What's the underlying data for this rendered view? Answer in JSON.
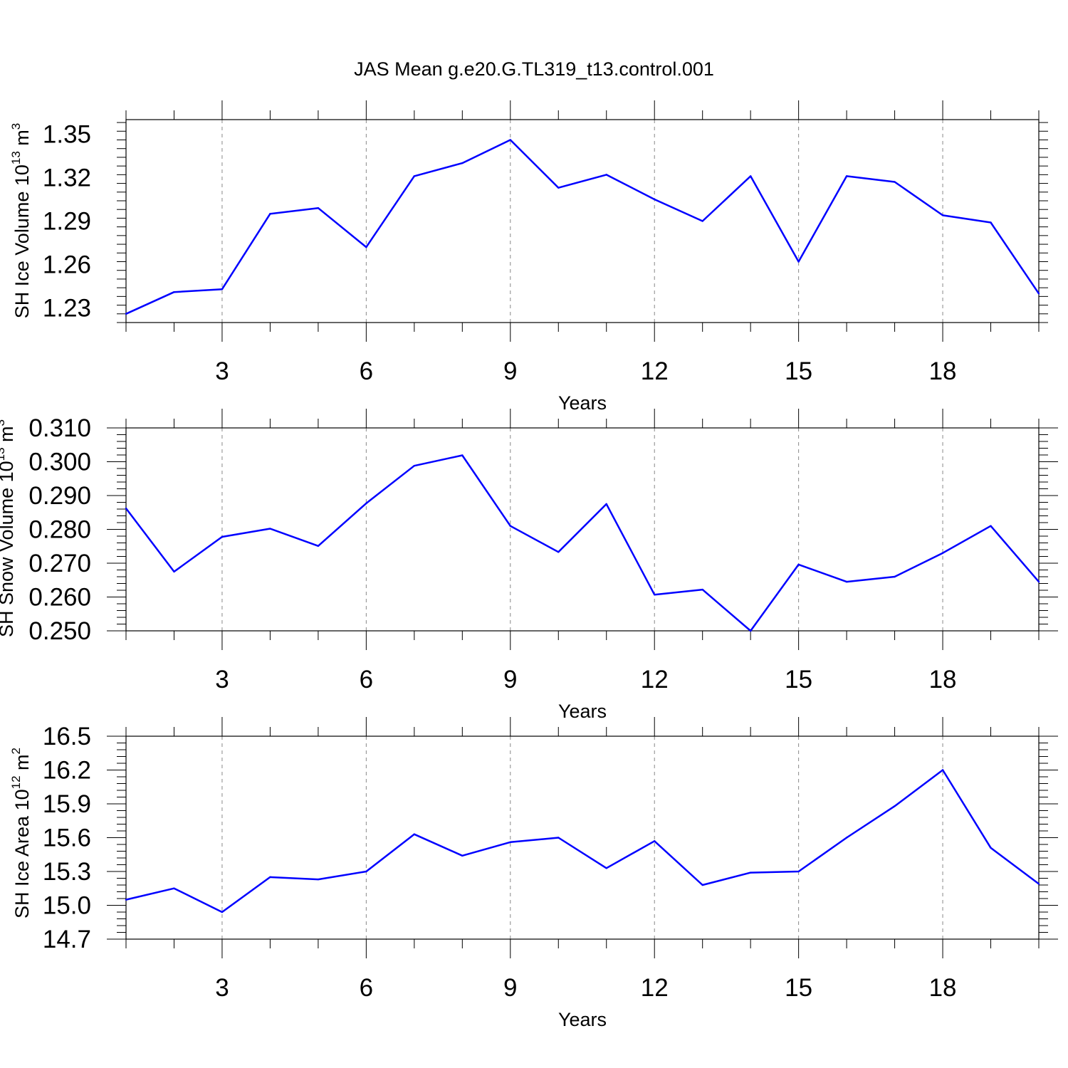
{
  "title": "JAS Mean g.e20.G.TL319_t13.control.001",
  "colors": {
    "line": "#0000ff",
    "axis": "#000000",
    "grid": "#888888"
  },
  "chart_data": [
    {
      "type": "line",
      "ylabel": {
        "main": "SH Ice Volume 10",
        "sup": "13",
        "unit": " m",
        "unit_sup": "3"
      },
      "xlabel": "Years",
      "xlim": [
        1,
        20
      ],
      "ylim": [
        1.22,
        1.36
      ],
      "yticks": [
        1.23,
        1.26,
        1.29,
        1.32,
        1.35
      ],
      "ytick_labels": [
        "1.23",
        "1.26",
        "1.29",
        "1.32",
        "1.35"
      ],
      "xticks": [
        3,
        6,
        9,
        12,
        15,
        18
      ],
      "xtick_labels": [
        "3",
        "6",
        "9",
        "12",
        "15",
        "18"
      ],
      "grid": "vertical dashed at major x ticks",
      "x": [
        1,
        2,
        3,
        4,
        5,
        6,
        7,
        8,
        9,
        10,
        11,
        12,
        13,
        14,
        15,
        16,
        17,
        18,
        19,
        20
      ],
      "y": [
        1.226,
        1.241,
        1.243,
        1.295,
        1.299,
        1.272,
        1.321,
        1.33,
        1.346,
        1.313,
        1.322,
        1.305,
        1.29,
        1.321,
        1.262,
        1.321,
        1.317,
        1.294,
        1.289,
        1.24
      ]
    },
    {
      "type": "line",
      "ylabel": {
        "main": "SH Snow Volume 10",
        "sup": "13",
        "unit": " m",
        "unit_sup": "3"
      },
      "xlabel": "Years",
      "xlim": [
        1,
        20
      ],
      "ylim": [
        0.25,
        0.31
      ],
      "yticks": [
        0.25,
        0.26,
        0.27,
        0.28,
        0.29,
        0.3,
        0.31
      ],
      "ytick_labels": [
        "0.250",
        "0.260",
        "0.270",
        "0.280",
        "0.290",
        "0.300",
        "0.310"
      ],
      "xticks": [
        3,
        6,
        9,
        12,
        15,
        18
      ],
      "xtick_labels": [
        "3",
        "6",
        "9",
        "12",
        "15",
        "18"
      ],
      "grid": "vertical dashed at major x ticks",
      "x": [
        1,
        2,
        3,
        4,
        5,
        6,
        7,
        8,
        9,
        10,
        11,
        12,
        13,
        14,
        15,
        16,
        17,
        18,
        19,
        20
      ],
      "y": [
        0.2862,
        0.2675,
        0.2778,
        0.2802,
        0.2751,
        0.2877,
        0.2988,
        0.3019,
        0.281,
        0.2733,
        0.2875,
        0.2607,
        0.2622,
        0.25,
        0.2696,
        0.2645,
        0.266,
        0.273,
        0.281,
        0.2645
      ]
    },
    {
      "type": "line",
      "ylabel": {
        "main": "SH Ice Area 10",
        "sup": "12",
        "unit": " m",
        "unit_sup": "2"
      },
      "xlabel": "Years",
      "xlim": [
        1,
        20
      ],
      "ylim": [
        14.7,
        16.5
      ],
      "yticks": [
        14.7,
        15.0,
        15.3,
        15.6,
        15.9,
        16.2,
        16.5
      ],
      "ytick_labels": [
        "14.7",
        "15.0",
        "15.3",
        "15.6",
        "15.9",
        "16.2",
        "16.5"
      ],
      "xticks": [
        3,
        6,
        9,
        12,
        15,
        18
      ],
      "xtick_labels": [
        "3",
        "6",
        "9",
        "12",
        "15",
        "18"
      ],
      "grid": "vertical dashed at major x ticks",
      "x": [
        1,
        2,
        3,
        4,
        5,
        6,
        7,
        8,
        9,
        10,
        11,
        12,
        13,
        14,
        15,
        16,
        17,
        18,
        19,
        20
      ],
      "y": [
        15.05,
        15.15,
        14.94,
        15.25,
        15.23,
        15.3,
        15.63,
        15.44,
        15.56,
        15.6,
        15.33,
        15.57,
        15.18,
        15.29,
        15.3,
        15.6,
        15.88,
        16.2,
        15.51,
        15.19
      ]
    }
  ]
}
